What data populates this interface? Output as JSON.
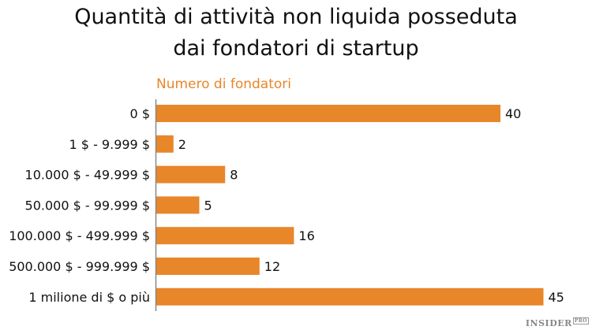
{
  "chart_data": {
    "type": "bar",
    "orientation": "horizontal",
    "title": "Quantità di attività non liquida posseduta dai fondatori di startup",
    "title_lines": [
      "Quantità di attività non liquida posseduta",
      "dai fondatori di startup"
    ],
    "series_label": "Numero di fondatori",
    "categories": [
      "0 $",
      "1 $ - 9.999 $",
      "10.000 $ - 49.999 $",
      "50.000 $ - 99.999 $",
      "100.000 $ - 499.999 $",
      "500.000 $ - 999.999 $",
      "1 milione di $ o più"
    ],
    "values": [
      40,
      2,
      8,
      5,
      16,
      12,
      45
    ],
    "xlim": [
      0,
      50
    ],
    "grid": false,
    "color": "#e8862a"
  },
  "branding": {
    "logo": "INSIDER",
    "logo_suffix": "PRO"
  }
}
